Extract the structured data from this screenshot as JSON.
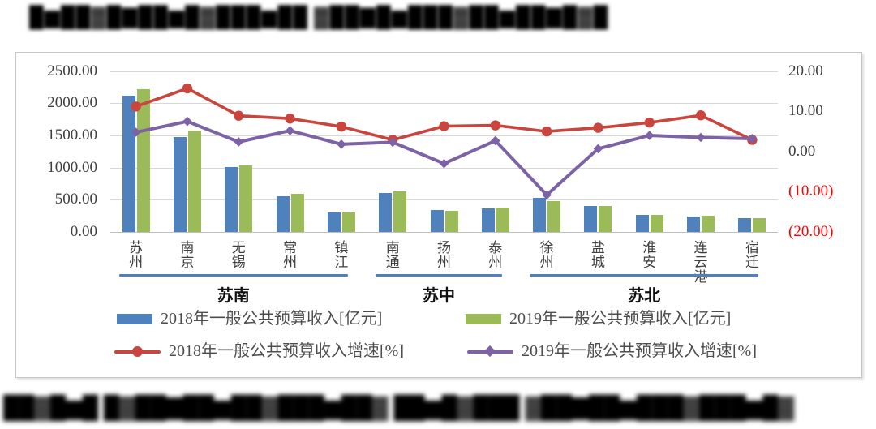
{
  "page": {
    "blurred_title": "█▆██▓█▇██▆█▓███▆██ ▓██▇█▆███▓██▆██▇█▓█",
    "blurred_footnote": "██▓█▆█ █▓██▇██▆██▓███▆██▓ ██▆█▓███ ▓██▇██▆███▓███▆█▓"
  },
  "chart_data": {
    "type": "bar+line combo (dual axis)",
    "categories": [
      "苏州",
      "南京",
      "无锡",
      "常州",
      "镇江",
      "南通",
      "扬州",
      "泰州",
      "徐州",
      "盐城",
      "淮安",
      "连云港",
      "宿迁"
    ],
    "category_groups": [
      {
        "label": "苏南",
        "span": [
          0,
          4
        ]
      },
      {
        "label": "苏中",
        "span": [
          5,
          7
        ]
      },
      {
        "label": "苏北",
        "span": [
          8,
          12
        ]
      }
    ],
    "group_line_color": "#4F81BD",
    "series": [
      {
        "name": "2018年一般公共预算收入[亿元]",
        "type": "bar",
        "axis": "left",
        "color": "#4F81BD",
        "values": [
          2120,
          1470,
          1012,
          561,
          302,
          606,
          335,
          363,
          526,
          400,
          259,
          240,
          210
        ]
      },
      {
        "name": "2019年一般公共预算收入[亿元]",
        "type": "bar",
        "axis": "left",
        "color": "#9BBB59",
        "values": [
          2222,
          1580,
          1036,
          590,
          307,
          630,
          326,
          375,
          476,
          403,
          270,
          248,
          217
        ]
      },
      {
        "name": "2018年一般公共预算收入增速[%]",
        "type": "line",
        "marker": "circle",
        "axis": "right",
        "color": "#C9453D",
        "values": [
          11.2,
          15.7,
          8.9,
          8.2,
          6.2,
          2.9,
          6.3,
          6.5,
          5.0,
          5.9,
          7.2,
          9.0,
          2.9
        ]
      },
      {
        "name": "2019年一般公共预算收入增速[%]",
        "type": "line",
        "marker": "diamond",
        "axis": "right",
        "color": "#7D63A5",
        "values": [
          4.8,
          7.5,
          2.4,
          5.2,
          1.8,
          2.3,
          -3.0,
          2.7,
          -10.8,
          0.7,
          4.0,
          3.5,
          3.2
        ]
      }
    ],
    "left_axis": {
      "min": 0,
      "max": 2500,
      "step": 500,
      "tick_labels": [
        "2500.00",
        "2000.00",
        "1500.00",
        "1000.00",
        "500.00",
        "0.00"
      ],
      "tick_color": "#3f3f3f"
    },
    "right_axis": {
      "min": -20,
      "max": 20,
      "step": 10,
      "tick_labels": [
        "20.00",
        "10.00",
        "0.00",
        "(10.00)",
        "(20.00)"
      ],
      "tick_color": "#3f3f3f",
      "negative_tick_color": "#FF0000"
    },
    "grid": true,
    "legend_position": "bottom"
  }
}
